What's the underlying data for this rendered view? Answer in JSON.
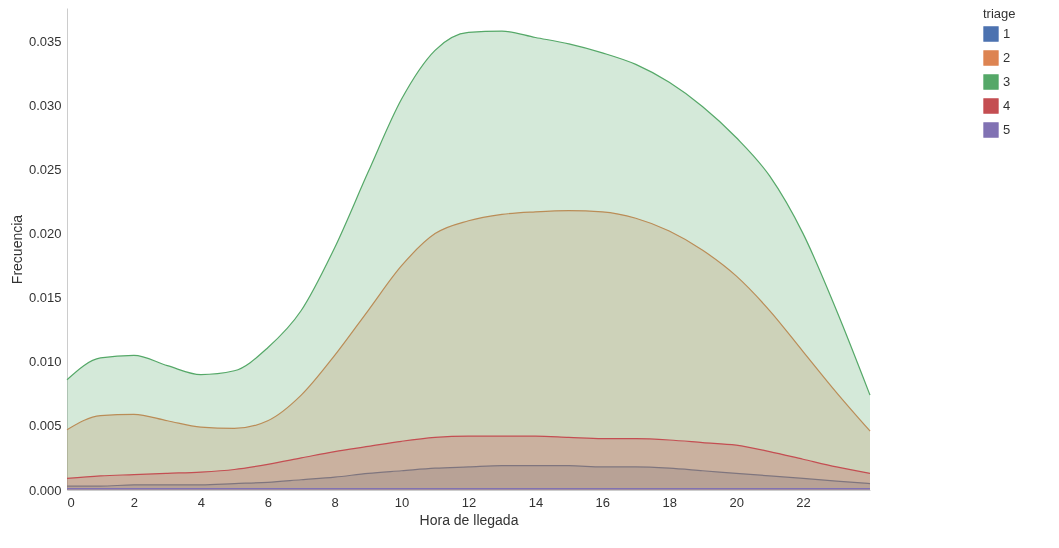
{
  "chart_data": {
    "type": "area",
    "xlabel": "Hora de llegada",
    "ylabel": "Frecuencia",
    "legend_title": "triage",
    "legend": "right",
    "x": [
      0,
      1,
      2,
      3,
      4,
      5,
      6,
      7,
      8,
      9,
      10,
      11,
      12,
      13,
      14,
      15,
      16,
      17,
      18,
      19,
      20,
      21,
      22,
      23,
      24
    ],
    "xlim": [
      0,
      24
    ],
    "xticks": [
      0,
      2,
      4,
      6,
      8,
      10,
      12,
      14,
      16,
      18,
      20,
      22
    ],
    "ylim": [
      0,
      0.0376
    ],
    "yticks": [
      {
        "value": 0,
        "label": "0.000"
      },
      {
        "value": 0.005,
        "label": "0.005"
      },
      {
        "value": 0.01,
        "label": "0.010"
      },
      {
        "value": 0.015,
        "label": "0.015"
      },
      {
        "value": 0.02,
        "label": "0.020"
      },
      {
        "value": 0.025,
        "label": "0.025"
      },
      {
        "value": 0.03,
        "label": "0.030"
      },
      {
        "value": 0.035,
        "label": "0.035"
      }
    ],
    "series": [
      {
        "name": "1",
        "color": "#4c72b0",
        "values": [
          0.0003,
          0.0003,
          0.0004,
          0.0004,
          0.0004,
          0.0005,
          0.0006,
          0.0008,
          0.001,
          0.0013,
          0.0015,
          0.0017,
          0.0018,
          0.0019,
          0.0019,
          0.0019,
          0.0018,
          0.0018,
          0.0017,
          0.0015,
          0.0013,
          0.0011,
          0.0009,
          0.0007,
          0.0005
        ]
      },
      {
        "name": "2",
        "color": "#dd8452",
        "values": [
          0.0047,
          0.0058,
          0.0059,
          0.0054,
          0.0049,
          0.0048,
          0.0054,
          0.0074,
          0.0105,
          0.014,
          0.0175,
          0.02,
          0.021,
          0.0215,
          0.0217,
          0.0218,
          0.0217,
          0.0212,
          0.0202,
          0.0187,
          0.0167,
          0.014,
          0.0108,
          0.0076,
          0.0046
        ]
      },
      {
        "name": "3",
        "color": "#55a868",
        "values": [
          0.0086,
          0.0103,
          0.0105,
          0.0097,
          0.009,
          0.0093,
          0.0111,
          0.014,
          0.0189,
          0.0248,
          0.0305,
          0.0343,
          0.0357,
          0.0358,
          0.0353,
          0.0348,
          0.0341,
          0.0332,
          0.0318,
          0.0299,
          0.0275,
          0.0245,
          0.02,
          0.014,
          0.0074
        ]
      },
      {
        "name": "4",
        "color": "#c44e52",
        "values": [
          0.0009,
          0.0011,
          0.0012,
          0.0013,
          0.0014,
          0.0016,
          0.002,
          0.0025,
          0.003,
          0.0034,
          0.0038,
          0.0041,
          0.0042,
          0.0042,
          0.0042,
          0.0041,
          0.004,
          0.004,
          0.0039,
          0.0037,
          0.0035,
          0.003,
          0.0024,
          0.0018,
          0.0013
        ]
      },
      {
        "name": "5",
        "color": "#8172b3",
        "values": [
          0.0001,
          0.0001,
          0.0001,
          0.0001,
          0.0001,
          0.0001,
          0.0001,
          0.0001,
          0.0001,
          0.0001,
          0.0001,
          0.0001,
          0.0001,
          0.0001,
          0.0001,
          0.0001,
          0.0001,
          0.0001,
          0.0001,
          0.0001,
          0.0001,
          0.0001,
          0.0001,
          0.0001,
          0.0001
        ]
      }
    ]
  }
}
